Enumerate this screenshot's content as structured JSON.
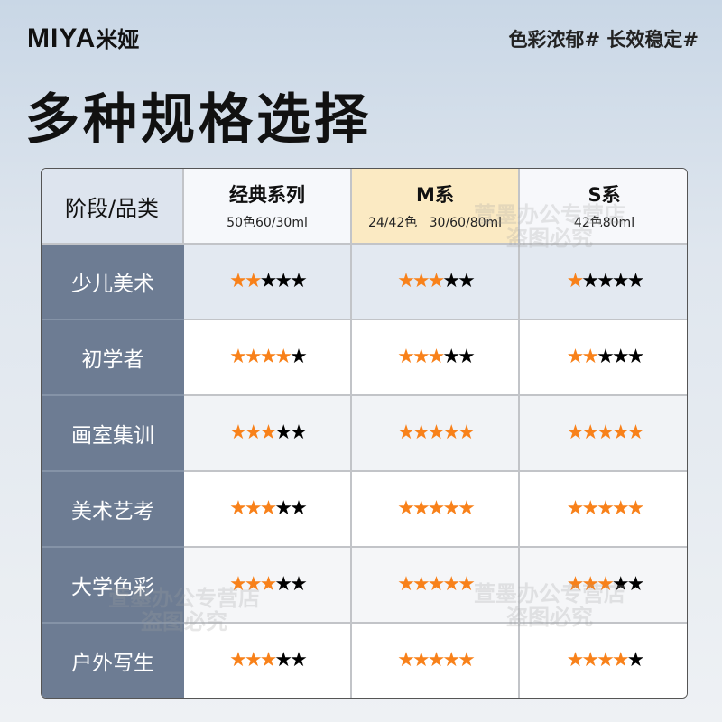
{
  "brand": {
    "logo_text": "MIYA",
    "logo_cn": "米娅"
  },
  "slogan": "色彩浓郁# 长效稳定#",
  "title": "多种规格选择",
  "table": {
    "corner": "阶段/品类",
    "columns": [
      {
        "name": "经典系列",
        "spec": "50色60/30ml"
      },
      {
        "name": "M系",
        "spec": "24/42色   30/60/80ml",
        "highlighted": true
      },
      {
        "name": "S系",
        "spec": "42色80ml"
      }
    ],
    "max_rating": 5,
    "rows": [
      {
        "stage": "少儿美术",
        "ratings": [
          2,
          3,
          1
        ]
      },
      {
        "stage": "初学者",
        "ratings": [
          4,
          3,
          2
        ]
      },
      {
        "stage": "画室集训",
        "ratings": [
          3,
          5,
          5
        ]
      },
      {
        "stage": "美术艺考",
        "ratings": [
          3,
          5,
          5
        ]
      },
      {
        "stage": "大学色彩",
        "ratings": [
          3,
          5,
          3
        ]
      },
      {
        "stage": "户外写生",
        "ratings": [
          3,
          5,
          4
        ]
      }
    ]
  },
  "watermark": {
    "line1": "萱墨办公专营店",
    "line2": "盗图必究"
  },
  "colors": {
    "star_on": "#f8811a",
    "star_off": "#000000",
    "stage_bg": "#6d7c93",
    "highlight": "#fbeac3"
  }
}
